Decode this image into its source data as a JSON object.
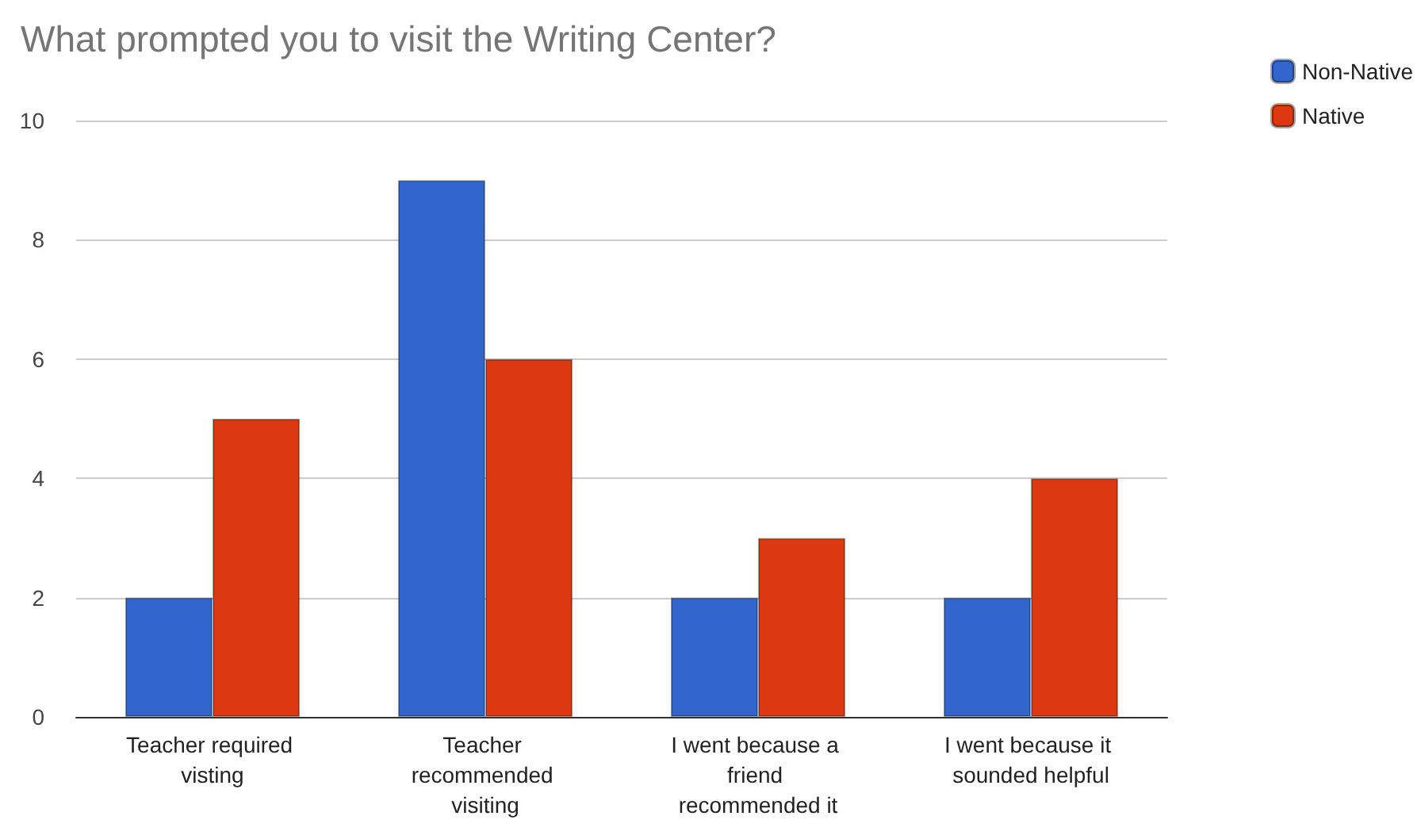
{
  "chart_data": {
    "type": "bar",
    "title": "What prompted you to visit the Writing Center?",
    "categories": [
      "Teacher required visting",
      "Teacher recommended visiting",
      "I went because a friend recommended it",
      "I went because it sounded helpful"
    ],
    "series": [
      {
        "name": "Non-Native",
        "color": "#3366cc",
        "values": [
          2,
          9,
          2,
          2
        ]
      },
      {
        "name": "Native",
        "color": "#dc3912",
        "values": [
          5,
          6,
          3,
          4
        ]
      }
    ],
    "ylim": [
      0,
      10
    ],
    "yticks": [
      0,
      2,
      4,
      6,
      8,
      10
    ],
    "grid": "y",
    "legend": "top right"
  }
}
